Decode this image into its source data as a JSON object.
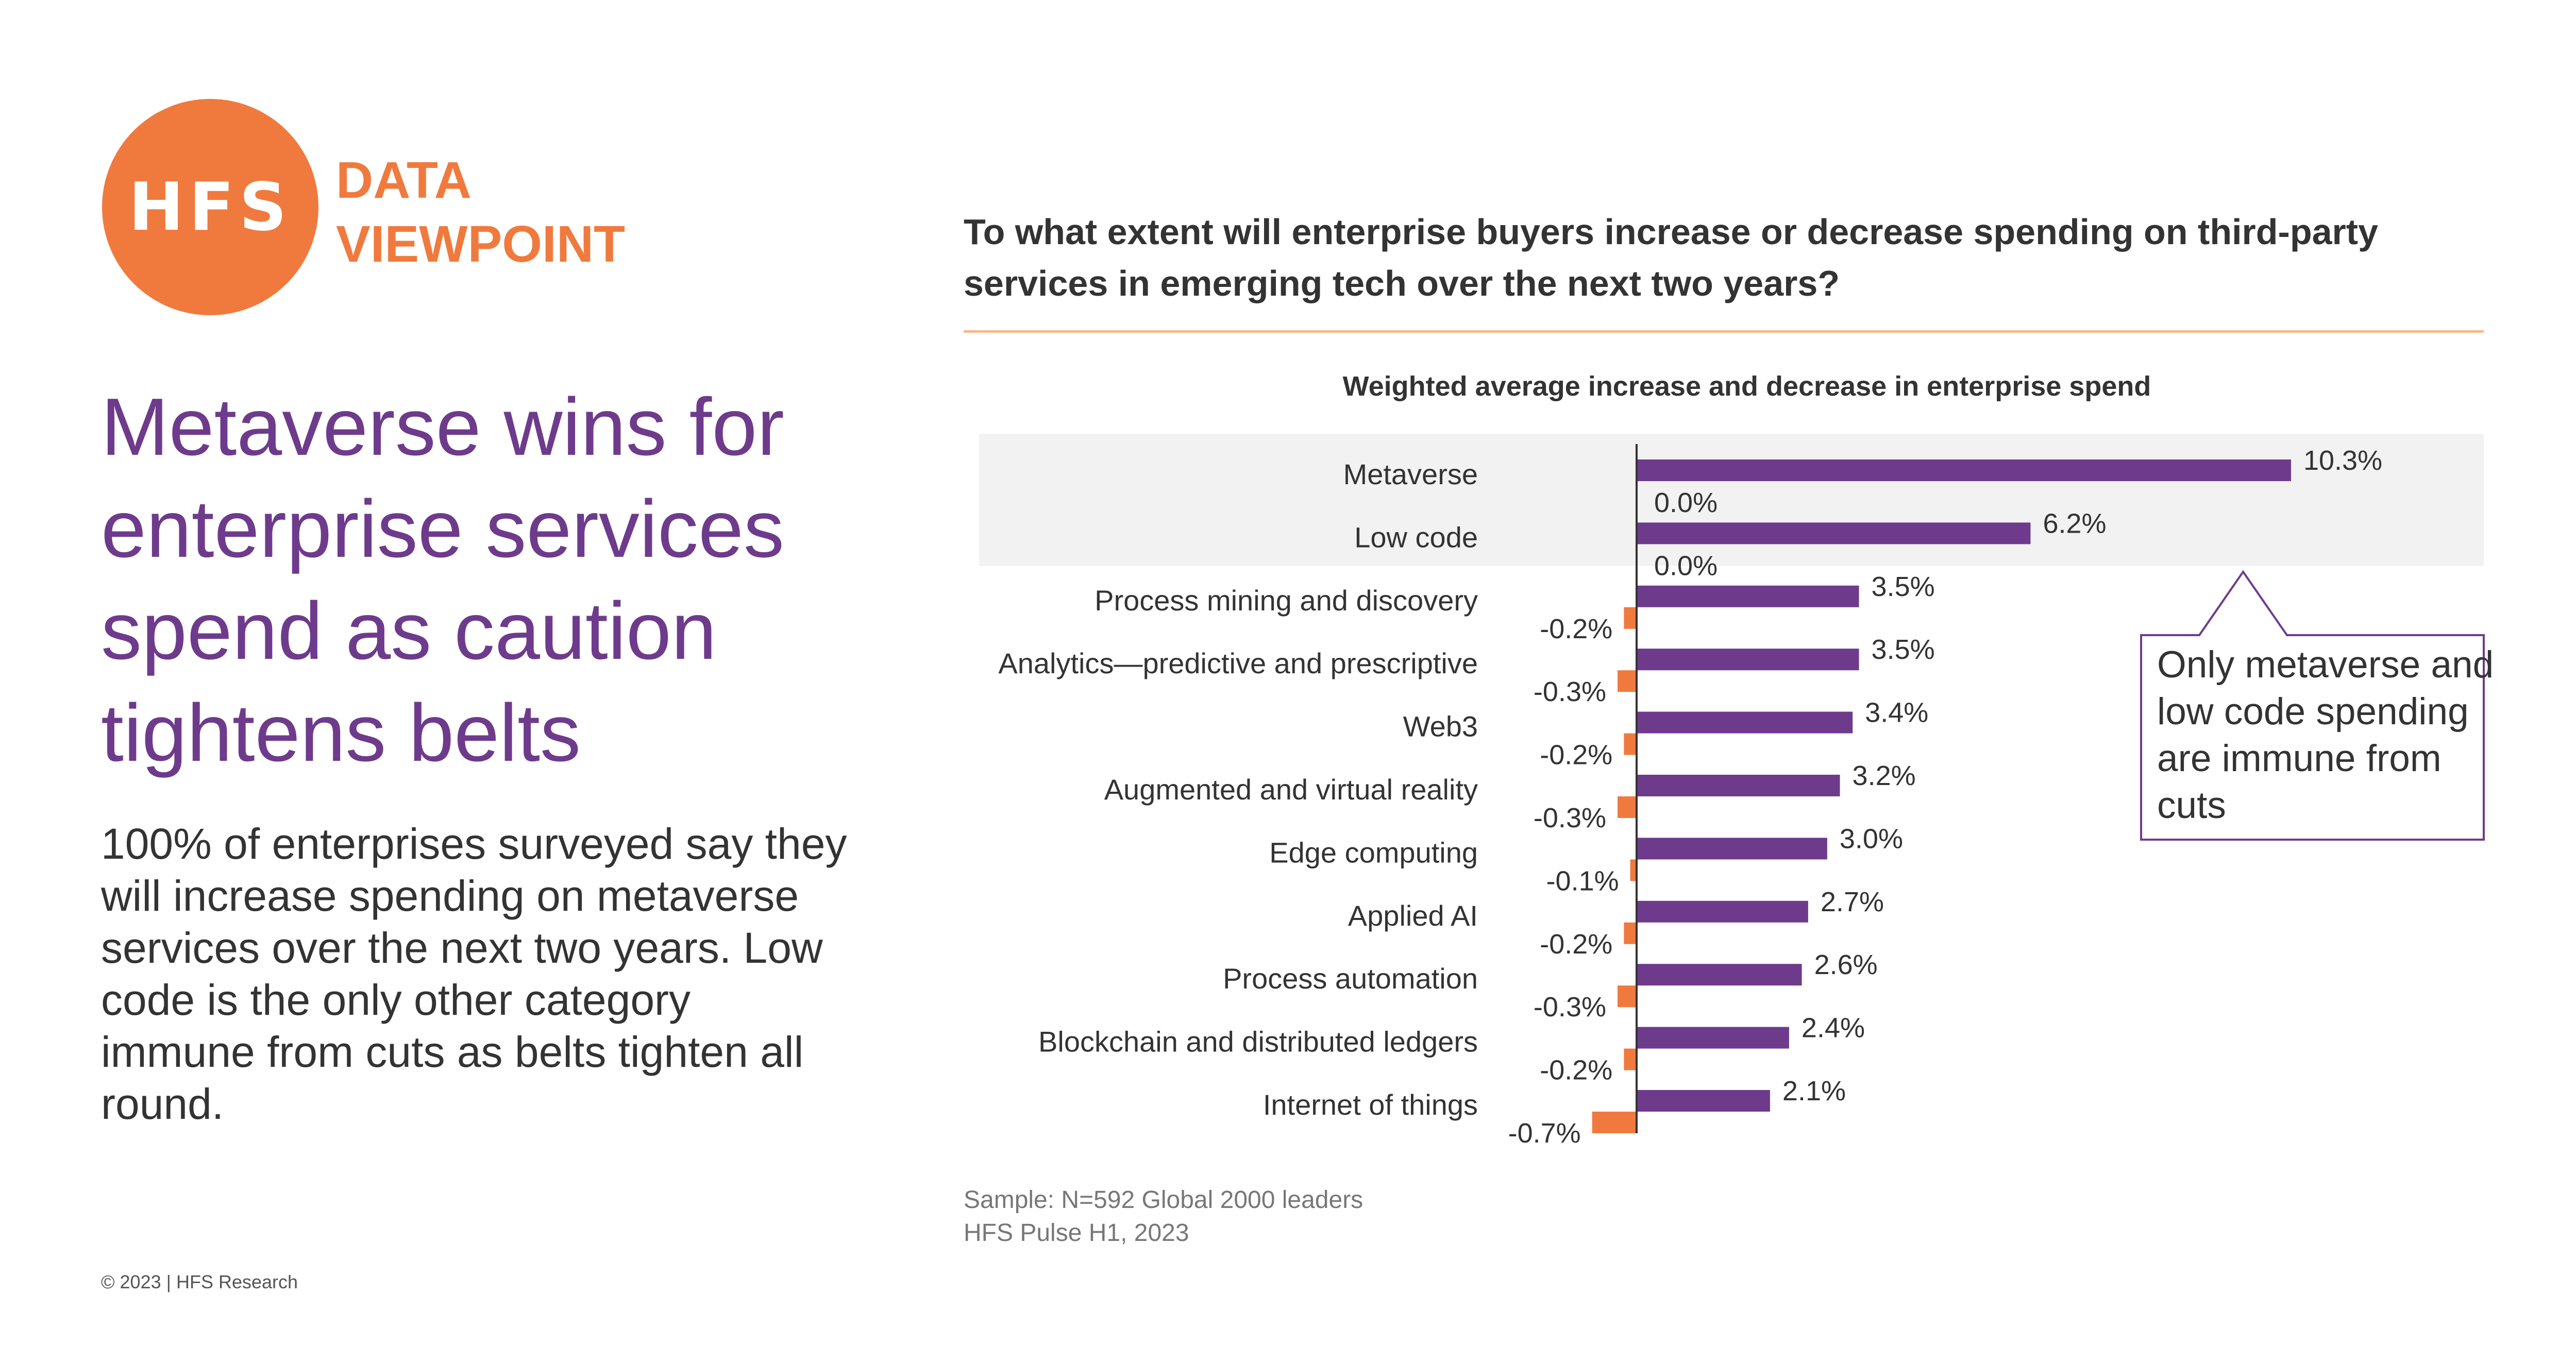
{
  "logo": {
    "text": "HFS",
    "tagline_line1": "DATA",
    "tagline_line2": "VIEWPOINT"
  },
  "headline": "Metaverse wins for enterprise services spend as caution tightens belts",
  "body": "100% of enterprises surveyed say they will increase spending on metaverse services over the next two years. Low code is the only other category immune from cuts as belts tighten all round.",
  "copyright": "© 2023 | HFS Research",
  "question": "To what extent will enterprise buyers increase or decrease spending on third-party services in emerging tech over the next two years?",
  "callout": "Only metaverse and low code spending are immune from cuts",
  "footnote": {
    "sample": "Sample: N=592 Global 2000 leaders",
    "source": "HFS Pulse H1, 2023"
  },
  "colors": {
    "increase": "#6E3B8C",
    "decrease": "#F07A3E",
    "highlight": "#F2F2F2",
    "accent": "#F07A3E"
  },
  "chart_data": {
    "type": "bar",
    "orientation": "horizontal",
    "title": "Weighted average increase and decrease in enterprise spend",
    "categories": [
      "Metaverse",
      "Low code",
      "Process mining and discovery",
      "Analytics—predictive and prescriptive",
      "Web3",
      "Augmented and virtual reality",
      "Edge computing",
      "Applied AI",
      "Process automation",
      "Blockchain and distributed ledgers",
      "Internet of things"
    ],
    "series": [
      {
        "color": "#6E3B8C",
        "values": [
          10.3,
          6.2,
          3.5,
          3.5,
          3.4,
          3.2,
          3.0,
          2.7,
          2.6,
          2.4,
          2.1
        ],
        "labels": [
          "10.3%",
          "6.2%",
          "3.5%",
          "3.5%",
          "3.4%",
          "3.2%",
          "3.0%",
          "2.7%",
          "2.6%",
          "2.4%",
          "2.1%"
        ]
      },
      {
        "color": "#F07A3E",
        "values": [
          0.0,
          0.0,
          -0.2,
          -0.3,
          -0.2,
          -0.3,
          -0.1,
          -0.2,
          -0.3,
          -0.2,
          -0.7
        ],
        "labels": [
          "0.0%",
          "0.0%",
          "-0.2%",
          "-0.3%",
          "-0.2%",
          "-0.3%",
          "-0.1%",
          "-0.2%",
          "-0.3%",
          "-0.2%",
          "-0.7%"
        ]
      }
    ],
    "highlighted_categories": [
      "Metaverse",
      "Low code"
    ],
    "xlim": [
      -0.7,
      10.3
    ]
  }
}
